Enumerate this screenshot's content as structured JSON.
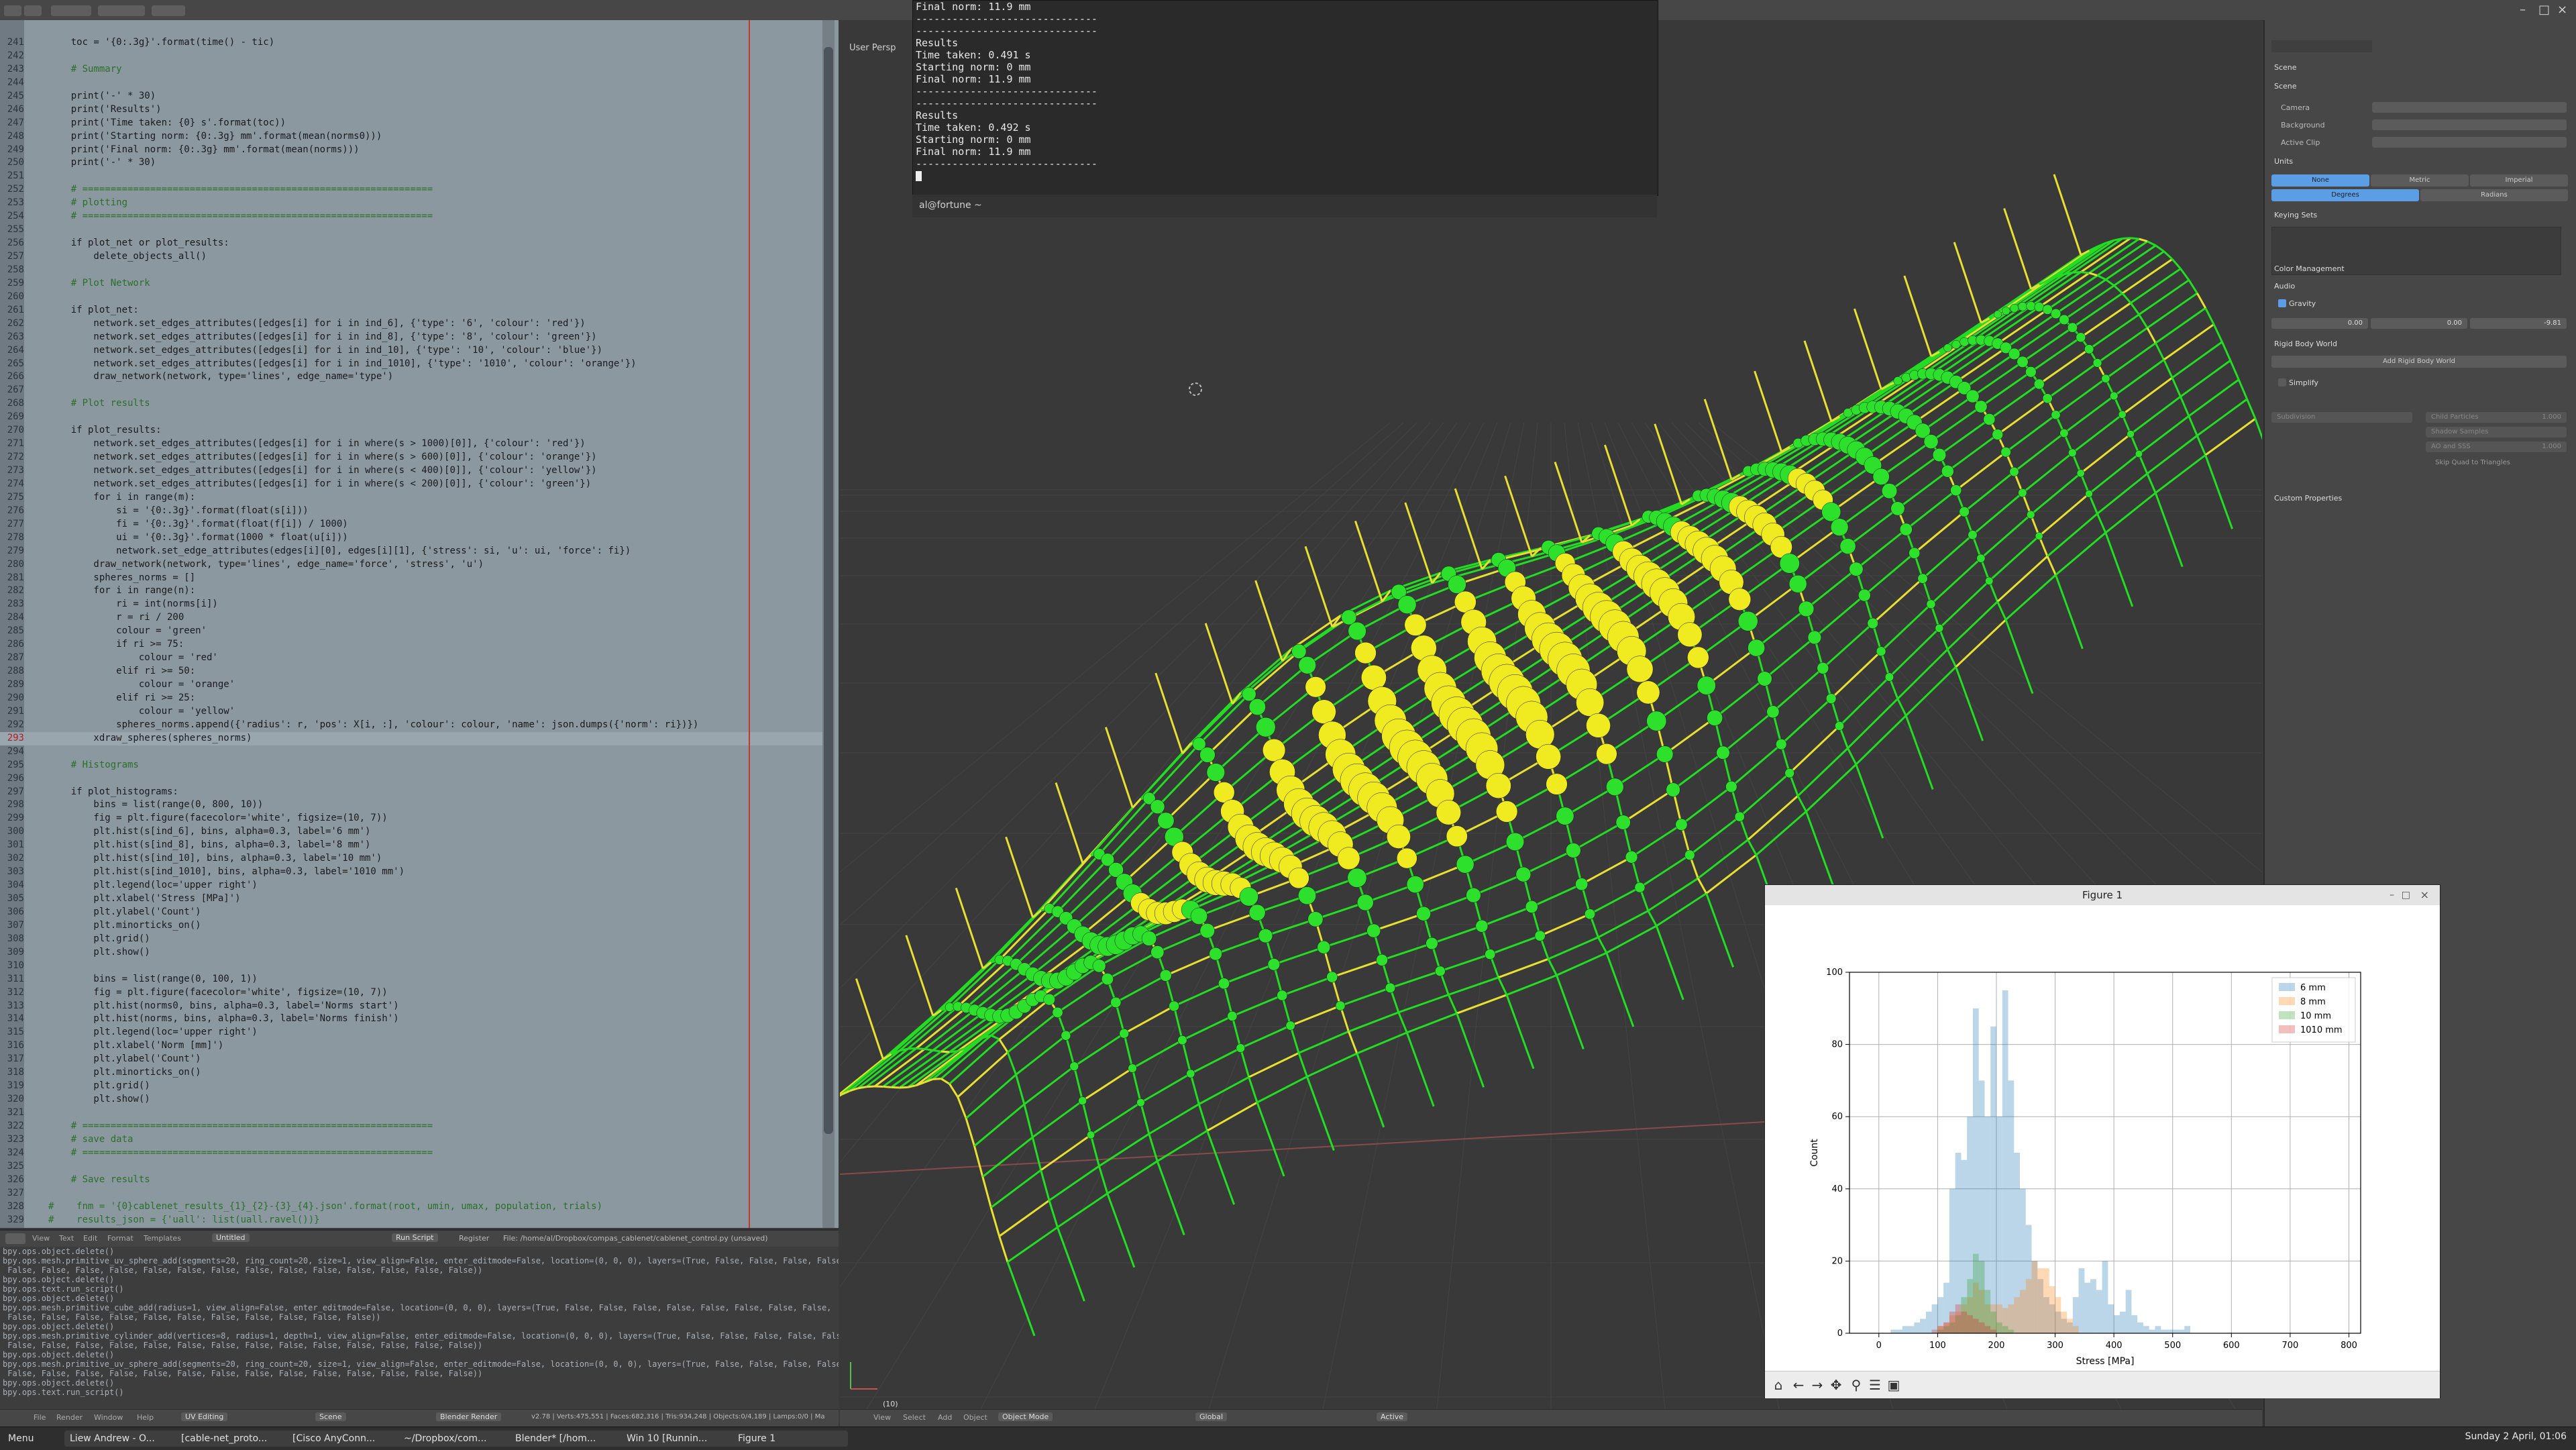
{
  "window": {
    "viewport_label": "User Persp",
    "frame_indicator": "(10)"
  },
  "editor": {
    "start_line": 241,
    "current_line": "293",
    "lines": [
      "    toc = '{0:.3g}'.format(time() - tic)",
      "",
      "    # Summary",
      "",
      "    print('-' * 30)",
      "    print('Results')",
      "    print('Time taken: {0} s'.format(toc))",
      "    print('Starting norm: {0:.3g} mm'.format(mean(norms0)))",
      "    print('Final norm: {0:.3g} mm'.format(mean(norms)))",
      "    print('-' * 30)",
      "",
      "    # ==============================================================",
      "    # plotting",
      "    # ==============================================================",
      "",
      "    if plot_net or plot_results:",
      "        delete_objects_all()",
      "",
      "    # Plot Network",
      "",
      "    if plot_net:",
      "        network.set_edges_attributes([edges[i] for i in ind_6], {'type': '6', 'colour': 'red'})",
      "        network.set_edges_attributes([edges[i] for i in ind_8], {'type': '8', 'colour': 'green'})",
      "        network.set_edges_attributes([edges[i] for i in ind_10], {'type': '10', 'colour': 'blue'})",
      "        network.set_edges_attributes([edges[i] for i in ind_1010], {'type': '1010', 'colour': 'orange'})",
      "        draw_network(network, type='lines', edge_name='type')",
      "",
      "    # Plot results",
      "",
      "    if plot_results:",
      "        network.set_edges_attributes([edges[i] for i in where(s > 1000)[0]], {'colour': 'red'})",
      "        network.set_edges_attributes([edges[i] for i in where(s > 600)[0]], {'colour': 'orange'})",
      "        network.set_edges_attributes([edges[i] for i in where(s < 400)[0]], {'colour': 'yellow'})",
      "        network.set_edges_attributes([edges[i] for i in where(s < 200)[0]], {'colour': 'green'})",
      "        for i in range(m):",
      "            si = '{0:.3g}'.format(float(s[i]))",
      "            fi = '{0:.3g}'.format(float(f[i]) / 1000)",
      "            ui = '{0:.3g}'.format(1000 * float(u[i]))",
      "            network.set_edge_attributes(edges[i][0], edges[i][1], {'stress': si, 'u': ui, 'force': fi})",
      "        draw_network(network, type='lines', edge_name='force', 'stress', 'u')",
      "        spheres_norms = []",
      "        for i in range(n):",
      "            ri = int(norms[i])",
      "            r = ri / 200",
      "            colour = 'green'",
      "            if ri >= 75:",
      "                colour = 'red'",
      "            elif ri >= 50:",
      "                colour = 'orange'",
      "            elif ri >= 25:",
      "                colour = 'yellow'",
      "            spheres_norms.append({'radius': r, 'pos': X[i, :], 'colour': colour, 'name': json.dumps({'norm': ri})})",
      "        xdraw_spheres(spheres_norms)",
      "",
      "    # Histograms",
      "",
      "    if plot_histograms:",
      "        bins = list(range(0, 800, 10))",
      "        fig = plt.figure(facecolor='white', figsize=(10, 7))",
      "        plt.hist(s[ind_6], bins, alpha=0.3, label='6 mm')",
      "        plt.hist(s[ind_8], bins, alpha=0.3, label='8 mm')",
      "        plt.hist(s[ind_10], bins, alpha=0.3, label='10 mm')",
      "        plt.hist(s[ind_1010], bins, alpha=0.3, label='1010 mm')",
      "        plt.legend(loc='upper right')",
      "        plt.xlabel('Stress [MPa]')",
      "        plt.ylabel('Count')",
      "        plt.minorticks_on()",
      "        plt.grid()",
      "        plt.show()",
      "",
      "        bins = list(range(0, 100, 1))",
      "        fig = plt.figure(facecolor='white', figsize=(10, 7))",
      "        plt.hist(norms0, bins, alpha=0.3, label='Norms start')",
      "        plt.hist(norms, bins, alpha=0.3, label='Norms finish')",
      "        plt.legend(loc='upper right')",
      "        plt.xlabel('Norm [mm]')",
      "        plt.ylabel('Count')",
      "        plt.minorticks_on()",
      "        plt.grid()",
      "        plt.show()",
      "",
      "    # ==============================================================",
      "    # save data",
      "    # ==============================================================",
      "",
      "    # Save results",
      "",
      "#    fnm = '{0}cablenet_results_{1}_{2}-{3}_{4}.json'.format(root, umin, umax, population, trials)",
      "#    results_json = {'uall': list(uall.ravel())}"
    ]
  },
  "editor_header": {
    "menu": [
      "View",
      "Text",
      "Edit",
      "Format",
      "Templates"
    ],
    "file_name": "Untitled",
    "run_script": "Run Script",
    "register": "Register",
    "file_path": "File: /home/al/Dropbox/compas_cablenet/cablenet_control.py (unsaved)"
  },
  "console_lines": [
    "bpy.ops.object.delete()",
    "bpy.ops.mesh.primitive_uv_sphere_add(segments=20, ring_count=20, size=1, view_align=False, enter_editmode=False, location=(0, 0, 0), layers=(True, False, False, False, False, False,",
    " False, False, False, False, False, False, False, False, False, False, False, False, False, False))",
    "bpy.ops.object.delete()",
    "bpy.ops.text.run_script()",
    "bpy.ops.object.delete()",
    "bpy.ops.mesh.primitive_cube_add(radius=1, view_align=False, enter_editmode=False, location=(0, 0, 0), layers=(True, False, False, False, False, False, False, False, False,",
    " False, False, False, False, False, False, False, False, False, False, False))",
    "bpy.ops.object.delete()",
    "bpy.ops.mesh.primitive_cylinder_add(vertices=8, radius=1, depth=1, view_align=False, enter_editmode=False, location=(0, 0, 0), layers=(True, False, False, False, False, False,",
    " False, False, False, False, False, False, False, False, False, False, False, False, False, False))",
    "bpy.ops.object.delete()",
    "bpy.ops.mesh.primitive_uv_sphere_add(segments=20, ring_count=20, size=1, view_align=False, enter_editmode=False, location=(0, 0, 0), layers=(True, False, False, False, False, False,",
    " False, False, False, False, False, False, False, False, False, False, False, False, False, False))",
    "bpy.ops.object.delete()",
    "bpy.ops.text.run_script()"
  ],
  "terminal": {
    "lines": [
      "Final norm: 11.9 mm",
      "------------------------------",
      "------------------------------",
      "Results",
      "Time taken: 0.491 s",
      "Starting norm: 0 mm",
      "Final norm: 11.9 mm",
      "------------------------------",
      "------------------------------",
      "Results",
      "Time taken: 0.492 s",
      "Starting norm: 0 mm",
      "Final norm: 11.9 mm",
      "------------------------------"
    ],
    "tab_label": "al@fortune ~"
  },
  "blender_header": {
    "menus": [
      "File",
      "Render",
      "Window",
      "Help"
    ],
    "layout": "UV Editing",
    "scene": "Scene",
    "engine": "Blender Render",
    "stats": "v2.78 | Verts:475,551 | Faces:682,316 | Tris:934,248 | Objects:0/4,189 | Lamps:0/0 | Ma"
  },
  "viewport_header": {
    "menus": [
      "View",
      "Select",
      "Add",
      "Object"
    ],
    "mode": "Object Mode",
    "pivot": "Global",
    "layer": "Active"
  },
  "properties": {
    "tab": "Scene",
    "sections": [
      "Scene",
      "Units",
      "Keying Sets",
      "Color Management",
      "Audio",
      "Gravity",
      "Rigid Body World",
      "Simplify",
      "Custom Properties"
    ],
    "fields": {
      "camera": "Camera",
      "background": "Background",
      "active_clip": "Active Clip"
    },
    "units": [
      "None",
      "Metric",
      "Imperial"
    ],
    "rotation": [
      "Degrees",
      "Radians"
    ],
    "gravity": {
      "x": "0.00",
      "y": "0.00",
      "z": "-9.81"
    },
    "add_rigid_body_world": "Add Rigid Body World",
    "simplify": {
      "subdivision": "Subdivision",
      "child_particles": "Child Particles",
      "shadow_samples": "Shadow Samples",
      "ao_sss": "AO and SSS",
      "skip_quad": "Skip Quad to Triangles",
      "child_particles_value": "1.000",
      "ao_value": "1.000"
    }
  },
  "figure": {
    "title": "Figure 1",
    "chart_data": {
      "type": "bar",
      "title": "",
      "xlabel": "Stress [MPa]",
      "ylabel": "Count",
      "xlim": [
        -50,
        820
      ],
      "ylim": [
        0,
        100
      ],
      "xticks": [
        0,
        100,
        200,
        300,
        400,
        500,
        600,
        700,
        800
      ],
      "yticks": [
        0,
        20,
        40,
        60,
        80,
        100
      ],
      "grid": true,
      "legend": "top-right",
      "bin_width": 10,
      "series": [
        {
          "name": "6 mm",
          "color": "#1f77b4",
          "x": [
            20,
            30,
            40,
            50,
            60,
            70,
            80,
            90,
            100,
            110,
            120,
            130,
            140,
            150,
            160,
            170,
            180,
            190,
            200,
            210,
            220,
            230,
            240,
            250,
            260,
            270,
            280,
            290,
            300,
            310,
            320,
            330,
            340,
            350,
            360,
            370,
            380,
            390,
            400,
            410,
            420,
            430,
            440,
            450,
            460,
            470,
            480,
            490,
            500,
            510,
            520
          ],
          "values": [
            1,
            1,
            2,
            2,
            3,
            4,
            6,
            8,
            10,
            14,
            40,
            50,
            48,
            60,
            90,
            70,
            60,
            85,
            60,
            95,
            70,
            50,
            40,
            30,
            20,
            15,
            10,
            8,
            6,
            4,
            3,
            10,
            18,
            14,
            15,
            12,
            20,
            8,
            5,
            6,
            12,
            5,
            3,
            2,
            1,
            2,
            1,
            1,
            1,
            1,
            2
          ]
        },
        {
          "name": "8 mm",
          "color": "#ff7f0e",
          "x": [
            100,
            110,
            120,
            130,
            140,
            150,
            160,
            170,
            180,
            190,
            200,
            210,
            220,
            230,
            240,
            250,
            260,
            270,
            280,
            290,
            300,
            310,
            320,
            330
          ],
          "values": [
            2,
            3,
            5,
            6,
            8,
            10,
            14,
            12,
            8,
            8,
            8,
            7,
            8,
            10,
            12,
            15,
            20,
            18,
            18,
            13,
            10,
            6,
            4,
            2
          ]
        },
        {
          "name": "10 mm",
          "color": "#2ca02c",
          "x": [
            100,
            110,
            120,
            130,
            140,
            150,
            160,
            170,
            180,
            190,
            200,
            210,
            220
          ],
          "values": [
            1,
            2,
            3,
            5,
            10,
            15,
            22,
            20,
            12,
            6,
            3,
            2,
            1
          ]
        },
        {
          "name": "1010 mm",
          "color": "#d62728",
          "x": [
            90,
            100,
            110,
            120,
            130,
            140,
            150,
            160,
            170,
            180,
            190
          ],
          "values": [
            1,
            2,
            3,
            6,
            8,
            6,
            5,
            4,
            3,
            2,
            1
          ]
        }
      ]
    }
  },
  "taskbar": {
    "menu": "Menu",
    "tasks": [
      "Liew Andrew - O...",
      "[cable-net_proto...",
      "[Cisco AnyConn...",
      "~/Dropbox/com...",
      "Blender* [/hom...",
      "Win 10 [Runnin...",
      "Figure 1"
    ],
    "clock": "Sunday 2 April, 01:06"
  }
}
